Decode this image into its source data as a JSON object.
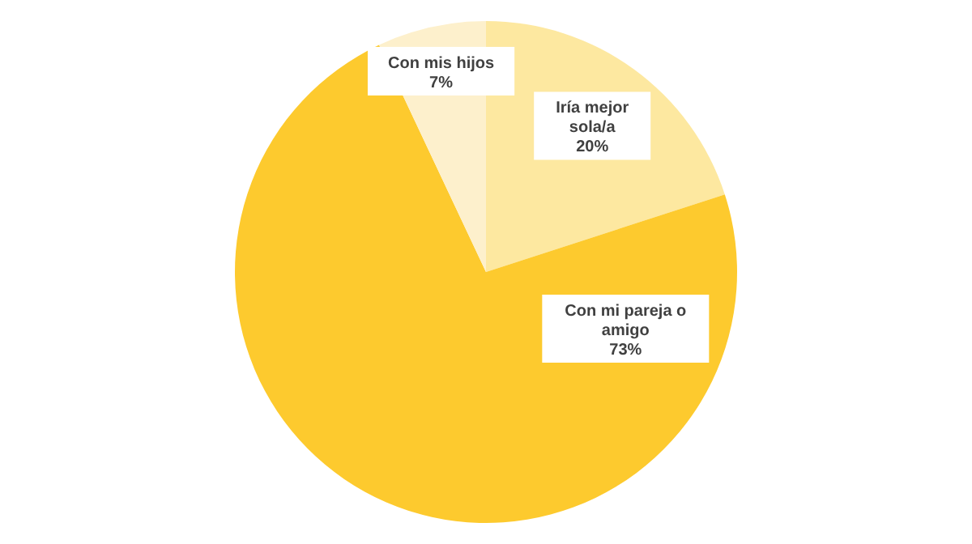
{
  "chart_data": {
    "type": "pie",
    "categories": [
      "Iría mejor sola/a",
      "Con mi pareja o amigo",
      "Con mis hijos"
    ],
    "values": [
      20,
      73,
      7
    ],
    "value_labels": [
      "20%",
      "73%",
      "7%"
    ],
    "colors": [
      "#fde8a0",
      "#fdca2e",
      "#fdf0cc"
    ]
  }
}
